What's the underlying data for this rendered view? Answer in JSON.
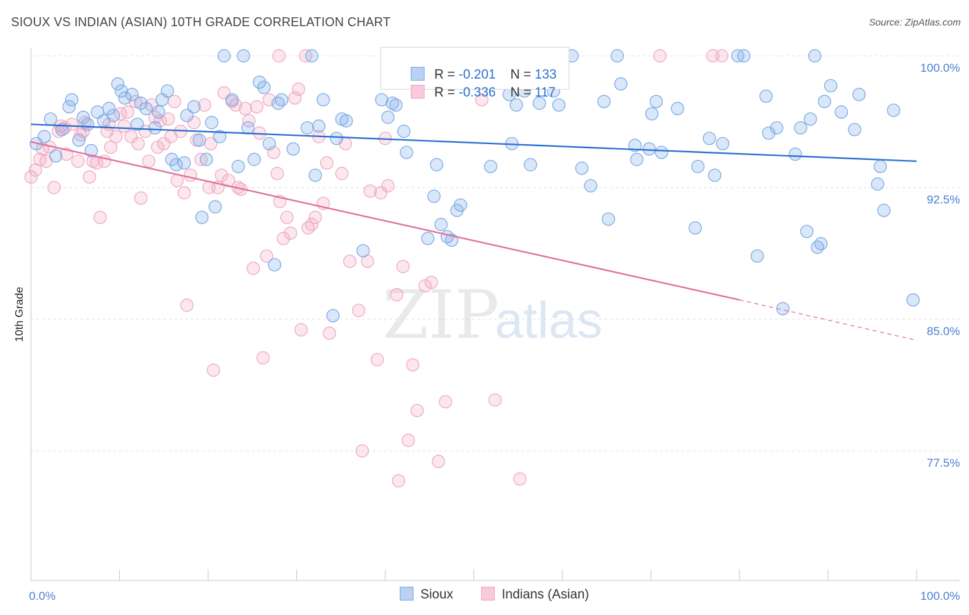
{
  "title": "SIOUX VS INDIAN (ASIAN) 10TH GRADE CORRELATION CHART",
  "source": "Source: ZipAtlas.com",
  "watermark": {
    "zip": "ZIP",
    "atlas": "atlas"
  },
  "legend_top": [
    {
      "r_label": "R = ",
      "r_value": "-0.201",
      "n_label": "N = ",
      "n_value": "133"
    },
    {
      "r_label": "R = ",
      "r_value": "-0.336",
      "n_label": "N = ",
      "n_value": "117"
    }
  ],
  "chart_data": {
    "type": "scatter",
    "title": "SIOUX VS INDIAN (ASIAN) 10TH GRADE CORRELATION CHART",
    "xlabel": "",
    "ylabel": "10th Grade",
    "x_tick_labels": [
      "0.0%",
      "100.0%"
    ],
    "y_tick_labels": [
      "100.0%",
      "92.5%",
      "85.0%",
      "77.5%"
    ],
    "y_tick_values": [
      100.0,
      92.5,
      85.0,
      77.5
    ],
    "xlim": [
      0,
      100
    ],
    "ylim": [
      71.0,
      101.0
    ],
    "grid": "horizontal dashed",
    "legend_position": "bottom-center",
    "colors": {
      "sioux": "#7aaae6",
      "sioux_line": "#2a6fd1",
      "indian": "#f0a8c0",
      "indian_line": "#e0709a",
      "tick": "#4a7fd0"
    },
    "series": [
      {
        "name": "Sioux",
        "r": -0.201,
        "n": 133,
        "trend": {
          "x": [
            0,
            100
          ],
          "y": [
            96.1,
            94.0
          ]
        },
        "points": [
          [
            0.6,
            95.0
          ],
          [
            1.5,
            95.4
          ],
          [
            2.2,
            96.4
          ],
          [
            2.8,
            94.3
          ],
          [
            3.5,
            95.8
          ],
          [
            4.3,
            97.1
          ],
          [
            4.6,
            97.5
          ],
          [
            5.4,
            95.2
          ],
          [
            5.9,
            96.5
          ],
          [
            6.4,
            96.1
          ],
          [
            6.8,
            94.6
          ],
          [
            7.5,
            96.8
          ],
          [
            8.2,
            96.3
          ],
          [
            8.8,
            97.0
          ],
          [
            9.3,
            96.6
          ],
          [
            9.8,
            98.4
          ],
          [
            10.2,
            98.0
          ],
          [
            10.6,
            97.6
          ],
          [
            11.4,
            97.8
          ],
          [
            12.0,
            96.1
          ],
          [
            12.4,
            97.3
          ],
          [
            13.0,
            97.0
          ],
          [
            14.0,
            95.9
          ],
          [
            14.4,
            96.8
          ],
          [
            14.8,
            97.5
          ],
          [
            15.4,
            98.0
          ],
          [
            15.9,
            94.1
          ],
          [
            16.4,
            93.8
          ],
          [
            17.3,
            93.9
          ],
          [
            17.6,
            96.6
          ],
          [
            18.4,
            97.1
          ],
          [
            19.0,
            95.2
          ],
          [
            19.3,
            90.8
          ],
          [
            19.8,
            94.1
          ],
          [
            20.4,
            96.2
          ],
          [
            20.8,
            91.4
          ],
          [
            21.3,
            95.4
          ],
          [
            21.8,
            100.0
          ],
          [
            22.7,
            97.5
          ],
          [
            23.4,
            93.7
          ],
          [
            24.0,
            100.0
          ],
          [
            24.5,
            95.9
          ],
          [
            25.2,
            94.1
          ],
          [
            25.8,
            98.5
          ],
          [
            26.3,
            98.2
          ],
          [
            26.9,
            95.0
          ],
          [
            27.5,
            88.1
          ],
          [
            27.9,
            97.3
          ],
          [
            28.3,
            97.5
          ],
          [
            29.6,
            94.7
          ],
          [
            31.2,
            95.9
          ],
          [
            31.7,
            100.0
          ],
          [
            32.1,
            93.2
          ],
          [
            32.5,
            96.0
          ],
          [
            33.0,
            97.5
          ],
          [
            34.1,
            85.2
          ],
          [
            34.5,
            95.3
          ],
          [
            35.1,
            96.4
          ],
          [
            35.6,
            96.3
          ],
          [
            37.5,
            88.9
          ],
          [
            39.6,
            97.5
          ],
          [
            40.3,
            96.5
          ],
          [
            40.8,
            97.3
          ],
          [
            41.2,
            97.2
          ],
          [
            42.1,
            95.7
          ],
          [
            42.4,
            94.5
          ],
          [
            43.5,
            100.0
          ],
          [
            44.8,
            89.6
          ],
          [
            44.9,
            100.0
          ],
          [
            45.5,
            92.0
          ],
          [
            45.8,
            93.8
          ],
          [
            46.3,
            90.4
          ],
          [
            47.0,
            89.7
          ],
          [
            47.5,
            89.5
          ],
          [
            48.1,
            91.2
          ],
          [
            48.5,
            91.5
          ],
          [
            51.9,
            93.7
          ],
          [
            54.0,
            97.8
          ],
          [
            54.3,
            95.0
          ],
          [
            54.8,
            97.2
          ],
          [
            55.7,
            98.0
          ],
          [
            56.4,
            93.8
          ],
          [
            57.4,
            97.3
          ],
          [
            59.0,
            98.0
          ],
          [
            59.6,
            97.2
          ],
          [
            61.1,
            100.0
          ],
          [
            62.2,
            93.6
          ],
          [
            63.2,
            92.6
          ],
          [
            64.7,
            97.4
          ],
          [
            65.2,
            90.7
          ],
          [
            66.2,
            100.0
          ],
          [
            66.6,
            98.4
          ],
          [
            68.2,
            94.9
          ],
          [
            68.4,
            94.1
          ],
          [
            69.8,
            94.7
          ],
          [
            70.1,
            96.7
          ],
          [
            70.6,
            97.4
          ],
          [
            71.2,
            94.5
          ],
          [
            73.0,
            97.0
          ],
          [
            75.0,
            90.2
          ],
          [
            75.3,
            93.7
          ],
          [
            76.6,
            95.3
          ],
          [
            77.2,
            93.2
          ],
          [
            78.1,
            95.0
          ],
          [
            79.8,
            100.0
          ],
          [
            80.5,
            100.0
          ],
          [
            82.0,
            88.6
          ],
          [
            83.0,
            97.7
          ],
          [
            83.3,
            95.6
          ],
          [
            84.2,
            95.9
          ],
          [
            84.9,
            85.6
          ],
          [
            86.3,
            94.4
          ],
          [
            86.9,
            95.9
          ],
          [
            87.6,
            90.0
          ],
          [
            88.0,
            96.4
          ],
          [
            88.5,
            100.0
          ],
          [
            88.8,
            89.1
          ],
          [
            89.2,
            89.3
          ],
          [
            89.6,
            97.4
          ],
          [
            90.3,
            98.3
          ],
          [
            91.5,
            96.8
          ],
          [
            93.0,
            95.8
          ],
          [
            93.5,
            97.8
          ],
          [
            95.6,
            92.7
          ],
          [
            95.9,
            93.7
          ],
          [
            96.3,
            91.2
          ],
          [
            97.4,
            96.9
          ],
          [
            99.6,
            86.1
          ]
        ]
      },
      {
        "name": "Indians (Asian)",
        "r": -0.336,
        "n": 117,
        "trend": {
          "x": [
            0,
            80
          ],
          "y": [
            95.1,
            86.1
          ]
        },
        "trend_dashed": {
          "x": [
            80,
            100
          ],
          "y": [
            86.1,
            83.8
          ]
        },
        "points": [
          [
            0.0,
            93.1
          ],
          [
            0.5,
            93.5
          ],
          [
            1.0,
            94.1
          ],
          [
            1.3,
            94.7
          ],
          [
            1.7,
            94.0
          ],
          [
            2.1,
            94.8
          ],
          [
            2.6,
            92.5
          ],
          [
            3.1,
            95.7
          ],
          [
            3.4,
            96.0
          ],
          [
            4.0,
            94.4
          ],
          [
            4.6,
            96.1
          ],
          [
            5.3,
            94.0
          ],
          [
            5.6,
            95.5
          ],
          [
            6.1,
            96.2
          ],
          [
            6.6,
            93.1
          ],
          [
            7.0,
            94.0
          ],
          [
            7.4,
            93.9
          ],
          [
            7.8,
            90.8
          ],
          [
            8.3,
            94.0
          ],
          [
            8.6,
            95.7
          ],
          [
            9.0,
            94.8
          ],
          [
            9.6,
            95.4
          ],
          [
            10.1,
            96.7
          ],
          [
            10.5,
            96.0
          ],
          [
            10.9,
            96.8
          ],
          [
            11.3,
            95.4
          ],
          [
            11.8,
            97.4
          ],
          [
            12.1,
            95.0
          ],
          [
            12.4,
            91.9
          ],
          [
            12.9,
            95.7
          ],
          [
            13.3,
            94.0
          ],
          [
            13.6,
            97.2
          ],
          [
            14.0,
            96.5
          ],
          [
            14.3,
            94.8
          ],
          [
            14.6,
            96.3
          ],
          [
            15.0,
            95.0
          ],
          [
            15.5,
            96.4
          ],
          [
            15.8,
            95.4
          ],
          [
            16.2,
            97.4
          ],
          [
            16.5,
            92.9
          ],
          [
            16.9,
            95.7
          ],
          [
            17.3,
            92.2
          ],
          [
            17.6,
            85.8
          ],
          [
            18.0,
            93.2
          ],
          [
            18.4,
            96.2
          ],
          [
            18.7,
            95.2
          ],
          [
            19.2,
            94.1
          ],
          [
            19.6,
            97.2
          ],
          [
            20.1,
            92.5
          ],
          [
            20.3,
            95.0
          ],
          [
            20.6,
            82.1
          ],
          [
            21.1,
            92.5
          ],
          [
            21.5,
            93.2
          ],
          [
            21.8,
            97.9
          ],
          [
            22.3,
            92.9
          ],
          [
            22.7,
            97.4
          ],
          [
            23.1,
            97.2
          ],
          [
            23.4,
            92.5
          ],
          [
            23.7,
            92.4
          ],
          [
            24.2,
            97.0
          ],
          [
            24.6,
            96.3
          ],
          [
            25.1,
            87.9
          ],
          [
            25.5,
            97.1
          ],
          [
            25.8,
            95.6
          ],
          [
            26.2,
            82.8
          ],
          [
            26.6,
            88.6
          ],
          [
            26.9,
            97.5
          ],
          [
            27.4,
            94.5
          ],
          [
            27.8,
            93.3
          ],
          [
            28.1,
            91.7
          ],
          [
            28.5,
            89.6
          ],
          [
            28.9,
            90.8
          ],
          [
            29.3,
            89.9
          ],
          [
            29.8,
            97.6
          ],
          [
            30.2,
            98.1
          ],
          [
            30.5,
            84.4
          ],
          [
            31.0,
            100.0
          ],
          [
            31.3,
            90.2
          ],
          [
            31.7,
            90.4
          ],
          [
            32.1,
            90.8
          ],
          [
            32.5,
            95.4
          ],
          [
            33.0,
            91.6
          ],
          [
            33.4,
            93.9
          ],
          [
            33.7,
            84.2
          ],
          [
            35.1,
            93.3
          ],
          [
            35.5,
            95.0
          ],
          [
            36.0,
            88.3
          ],
          [
            37.0,
            85.5
          ],
          [
            37.4,
            77.5
          ],
          [
            38.0,
            88.3
          ],
          [
            38.3,
            92.3
          ],
          [
            39.1,
            82.7
          ],
          [
            39.5,
            92.2
          ],
          [
            40.0,
            95.3
          ],
          [
            40.3,
            92.6
          ],
          [
            41.3,
            86.4
          ],
          [
            41.5,
            75.8
          ],
          [
            42.0,
            88.0
          ],
          [
            42.6,
            78.1
          ],
          [
            43.1,
            82.4
          ],
          [
            43.6,
            79.8
          ],
          [
            44.5,
            86.9
          ],
          [
            45.0,
            100.0
          ],
          [
            45.2,
            87.1
          ],
          [
            46.0,
            76.9
          ],
          [
            46.8,
            80.3
          ],
          [
            50.9,
            97.5
          ],
          [
            52.4,
            80.4
          ],
          [
            55.2,
            75.9
          ],
          [
            71.0,
            100.0
          ],
          [
            77.0,
            100.0
          ],
          [
            78.0,
            100.0
          ],
          [
            28.0,
            100.0
          ],
          [
            46.0,
            100.0
          ],
          [
            8.8,
            96.1
          ],
          [
            5.9,
            95.7
          ],
          [
            3.8,
            95.9
          ]
        ]
      }
    ]
  }
}
